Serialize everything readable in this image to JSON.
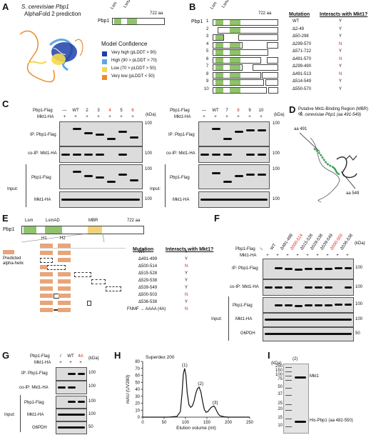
{
  "A": {
    "label": "A",
    "title1": "S. cerevisiae Pbp1",
    "title2": "AlphaFold 2 prediction",
    "protein": "Pbp1",
    "lsm": "Lsm",
    "lsmad": "LsmAD",
    "length": "722 aa",
    "legend_title": "Model Confidence",
    "legend": [
      {
        "text": "Very high (pLDDT > 90)",
        "color": "#1f3fa8"
      },
      {
        "text": "High (90 > pLDDT > 70)",
        "color": "#5fa7e0"
      },
      {
        "text": "Low (70 > pLDDT > 50)",
        "color": "#f5d94a"
      },
      {
        "text": "Very low (pLDDT < 50)",
        "color": "#f08a2a"
      }
    ]
  },
  "B": {
    "label": "B",
    "protein": "Pbp1",
    "lsm": "Lsm",
    "lsmad": "LsmAD",
    "length": "722 aa",
    "col_mut": "Mutation",
    "col_int": "Interacts with Mkt1?",
    "rows": [
      {
        "n": "1",
        "mut": "WT",
        "int": "Y"
      },
      {
        "n": "2",
        "mut": "Δ2-49",
        "int": "Y"
      },
      {
        "n": "3",
        "mut": "Δ50-298",
        "int": "Y"
      },
      {
        "n": "4",
        "mut": "Δ299-570",
        "int": "N"
      },
      {
        "n": "5",
        "mut": "Δ571-722",
        "int": "Y"
      },
      {
        "n": "6",
        "mut": "Δ491-570",
        "int": "N"
      },
      {
        "n": "7",
        "mut": "Δ299-490",
        "int": "Y"
      },
      {
        "n": "8",
        "mut": "Δ491-513",
        "int": "N"
      },
      {
        "n": "9",
        "mut": "Δ514-549",
        "int": "Y"
      },
      {
        "n": "10",
        "mut": "Δ550-570",
        "int": "Y"
      }
    ]
  },
  "C": {
    "label": "C",
    "row1": "Pbp1-Flag",
    "row2": "Mkt1-HA",
    "kda": "(kDa)",
    "ip": "IP: Pbp1-Flag",
    "coip": "co-IP: Mkt1-HA",
    "input": "Input:",
    "in1": "Pbp1-Flag",
    "in2": "Mkt1-HA",
    "lanes_left": [
      "—",
      "WT",
      "2",
      "3",
      "4",
      "5",
      "6"
    ],
    "mkt_left": [
      "+",
      "+",
      "+",
      "+",
      "+",
      "+",
      "+"
    ],
    "lanes_right": [
      "—",
      "WT",
      "7",
      "8",
      "9",
      "10"
    ],
    "mkt_right": [
      "+",
      "+",
      "+",
      "+",
      "+",
      "+"
    ],
    "m100": "100"
  },
  "D": {
    "label": "D",
    "title1": "Putative Mkt1-Binding Region (MBR) of",
    "title2": "S. cerevisiae Pbp1 (aa 491-549)",
    "aa1": "aa 491",
    "aa2": "aa 549"
  },
  "E": {
    "label": "E",
    "protein": "Pbp1",
    "lsm": "Lsm",
    "lsmad": "LsmAD",
    "mbr": "MBR",
    "length": "722 aa",
    "h1": "H1",
    "h2": "H2",
    "pred1": "Predicted",
    "pred2": "alpha-helix",
    "col_mut": "Mutation",
    "col_int": "Interacts with Mkt1?",
    "rows": [
      {
        "mut": "WT",
        "int": "Y"
      },
      {
        "mut": "Δ491-499",
        "int": "Y"
      },
      {
        "mut": "Δ500-514",
        "int": "N"
      },
      {
        "mut": "Δ515-528",
        "int": "Y"
      },
      {
        "mut": "Δ529-538",
        "int": "Y"
      },
      {
        "mut": "Δ539-549",
        "int": "Y"
      },
      {
        "mut": "Δ500-503",
        "int": "N"
      },
      {
        "mut": "Δ536-538",
        "int": "Y"
      },
      {
        "mut": "FNMF → AAAA (4A)",
        "int": "N"
      }
    ]
  },
  "F": {
    "label": "F",
    "row1": "Pbp1-Flag",
    "row2": "Mkt1-HA",
    "ip": "IP: Pbp1-Flag",
    "coip": "co-IP: Mkt1-HA",
    "input": "Input:",
    "in1": "Pbp1-Flag",
    "in2": "Mkt1-HA",
    "in3": "G6PDH",
    "lanes": [
      "/",
      "WT",
      "Δ491-499",
      "Δ500-514",
      "Δ515-528",
      "Δ529-538",
      "Δ539-549",
      "Δ500-503",
      "Δ536-538"
    ],
    "mkt": [
      "+",
      "+",
      "+",
      "+",
      "+",
      "+",
      "+",
      "+",
      "+"
    ],
    "kda": "(kDa)",
    "m100": "100",
    "m50": "50"
  },
  "G": {
    "label": "G",
    "row1": "Pbp1-Flag",
    "row2": "Mkt1-HA",
    "lanes": [
      "/",
      "WT",
      "4A"
    ],
    "mkt": [
      "+",
      "+",
      "+"
    ],
    "kda": "(kDa)",
    "ip": "IP: Pbp1-Flag",
    "coip": "co-IP: Mkt1-HA",
    "input": "Input:",
    "in1": "Pbp1-Flag",
    "in2": "Mkt1-HA",
    "in3": "G6PDH",
    "m100": "100",
    "m50": "50"
  },
  "H": {
    "label": "H",
    "chart_data": {
      "type": "line",
      "title": "Superdex 200",
      "xlabel": "Elution volume (ml)",
      "ylabel": "mAU (UV280)",
      "xlim": [
        0,
        250
      ],
      "ylim": [
        0,
        80
      ],
      "xticks": [
        0,
        50,
        100,
        150,
        200,
        250
      ],
      "yticks": [
        0,
        10,
        20,
        30,
        40,
        50,
        60,
        70,
        80
      ],
      "peaks": [
        {
          "label": "(1)",
          "x": 98,
          "y": 70
        },
        {
          "label": "(2)",
          "x": 132,
          "y": 43
        },
        {
          "label": "(3)",
          "x": 166,
          "y": 16
        }
      ],
      "x": [
        0,
        60,
        80,
        88,
        92,
        95,
        98,
        101,
        104,
        108,
        112,
        116,
        120,
        124,
        128,
        132,
        136,
        140,
        144,
        148,
        152,
        156,
        160,
        163,
        166,
        169,
        172,
        176,
        180,
        190,
        200,
        250
      ],
      "y": [
        0,
        0,
        1,
        8,
        35,
        62,
        70,
        60,
        35,
        18,
        14,
        16,
        23,
        34,
        41,
        43,
        36,
        22,
        11,
        7,
        8,
        11,
        14,
        15,
        16,
        14,
        10,
        5,
        2,
        0.5,
        0,
        0
      ]
    }
  },
  "I": {
    "label": "I",
    "kda": "(kDa)",
    "lane": "(2)",
    "band1": "Mkt1",
    "band2": "His-Pbp1 (aa 482-550)",
    "markers": [
      "250",
      "150",
      "100",
      "75",
      "50",
      "37",
      "25",
      "20",
      "15",
      "10"
    ]
  }
}
